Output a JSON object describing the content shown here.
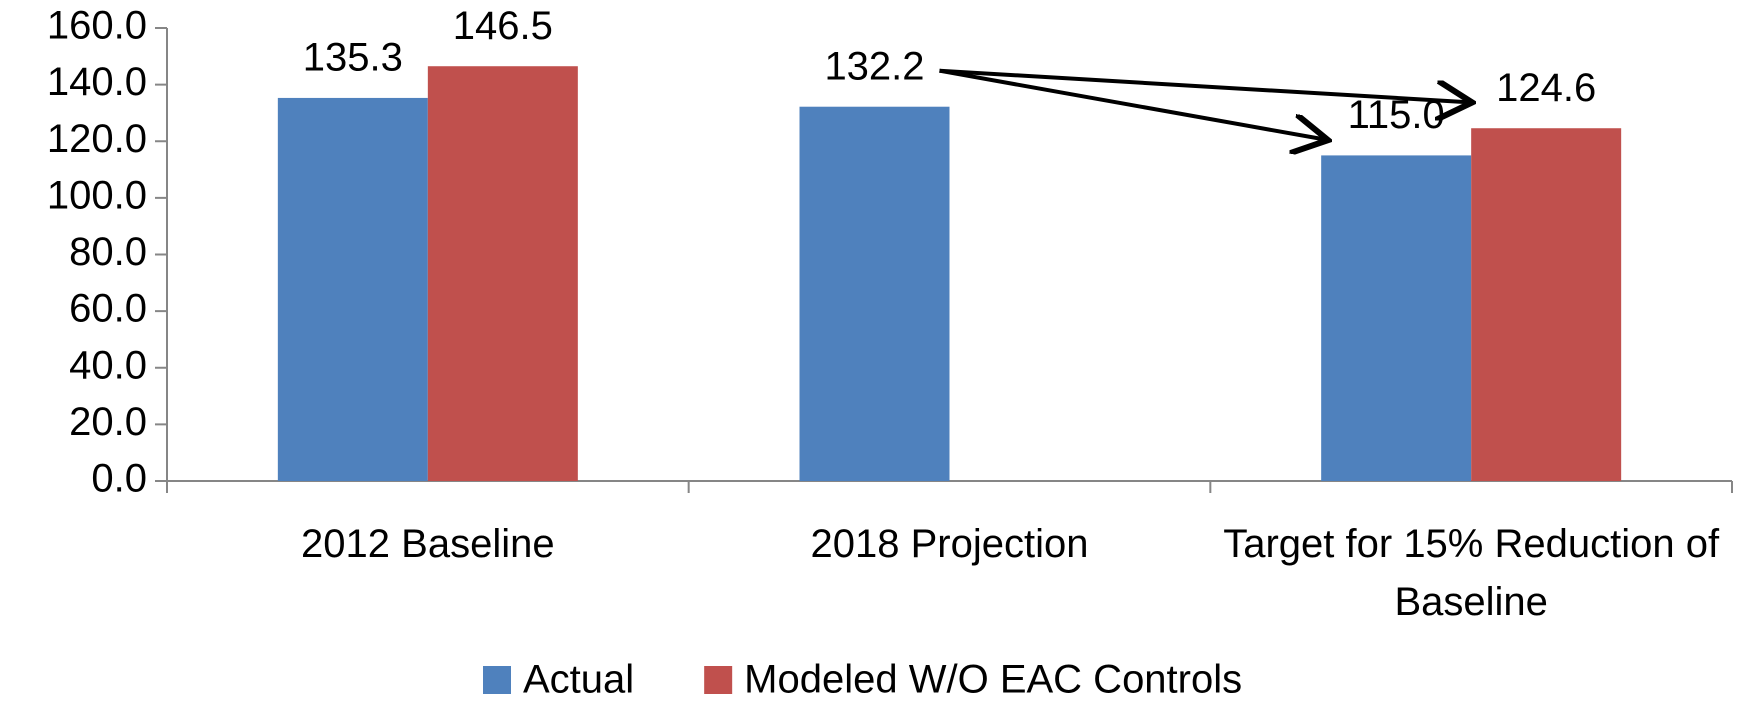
{
  "chart_data": {
    "type": "bar",
    "categories": [
      "2012 Baseline",
      "2018 Projection",
      "Target for 15% Reduction of Baseline"
    ],
    "series": [
      {
        "name": "Actual",
        "color": "#4f81bd",
        "values": [
          135.3,
          132.2,
          115.0
        ],
        "value_labels": [
          "135.3",
          "132.2",
          "115.0"
        ]
      },
      {
        "name": "Modeled W/O EAC Controls",
        "color": "#c0504d",
        "values": [
          146.5,
          null,
          124.6
        ],
        "value_labels": [
          "146.5",
          null,
          "124.6"
        ]
      }
    ],
    "ylim": [
      0,
      160
    ],
    "yticks": [
      {
        "value": 0,
        "label": "0.0"
      },
      {
        "value": 20,
        "label": "20.0"
      },
      {
        "value": 40,
        "label": "40.0"
      },
      {
        "value": 60,
        "label": "60.0"
      },
      {
        "value": 80,
        "label": "80.0"
      },
      {
        "value": 100,
        "label": "100.0"
      },
      {
        "value": 120,
        "label": "120.0"
      },
      {
        "value": 140,
        "label": "140.0"
      },
      {
        "value": 160,
        "label": "160.0"
      }
    ],
    "grid": false,
    "legend": "bottom"
  }
}
